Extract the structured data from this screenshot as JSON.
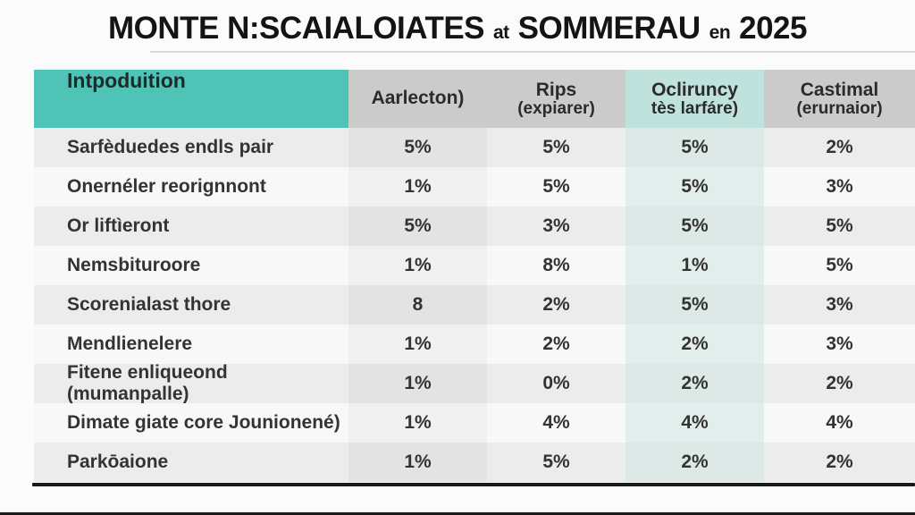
{
  "colors": {
    "accent_teal": "#4EC3B6",
    "header_gray": "#CBCBCB",
    "header_light_teal": "#BFE2DC",
    "stripe_gray": "#ECECEC",
    "row_white": "#F8F8F8",
    "rule_black": "#1A1A1A",
    "text_dark": "#333333"
  },
  "chart_data": {
    "type": "table",
    "title": "MONTE N:SCAIALOIATES at SOMMERAU en 2025",
    "title_parts": {
      "part1": "MONTE N:SCAIALOIATES",
      "small1": "at",
      "part2": "SOMMERAU",
      "small2": "en",
      "part3": "2025"
    },
    "columns": [
      {
        "label": "Intpoduition",
        "sub": ""
      },
      {
        "label": "Aarlecton)",
        "sub": ""
      },
      {
        "label": "Rips",
        "sub": "(expiarer)"
      },
      {
        "label": "Ocliruncy",
        "sub": "tès larfáre)"
      },
      {
        "label": "Castimal",
        "sub": "(erurnaior)"
      }
    ],
    "rows": [
      {
        "label": "Sarfèduedes endls pair",
        "values": [
          "5%",
          "5%",
          "5%",
          "2%"
        ]
      },
      {
        "label": "Onernéler reorignnont",
        "values": [
          "1%",
          "5%",
          "5%",
          "3%"
        ]
      },
      {
        "label": "Or liftìeront",
        "values": [
          "5%",
          "3%",
          "5%",
          "5%"
        ]
      },
      {
        "label": "Nemsbituroore",
        "values": [
          "1%",
          "8%",
          "1%",
          "5%"
        ]
      },
      {
        "label": "Scorenialast thore",
        "values": [
          "8",
          "2%",
          "5%",
          "3%"
        ]
      },
      {
        "label": "Mendlienelere",
        "values": [
          "1%",
          "2%",
          "2%",
          "3%"
        ]
      },
      {
        "label": "Fitene enliqueond (mumanpalle)",
        "values": [
          "1%",
          "0%",
          "2%",
          "2%"
        ]
      },
      {
        "label": "Dimate giate core Jounionené)",
        "values": [
          "1%",
          "4%",
          "4%",
          "4%"
        ]
      },
      {
        "label": "Parkōaione",
        "values": [
          "1%",
          "5%",
          "2%",
          "2%"
        ]
      }
    ]
  }
}
